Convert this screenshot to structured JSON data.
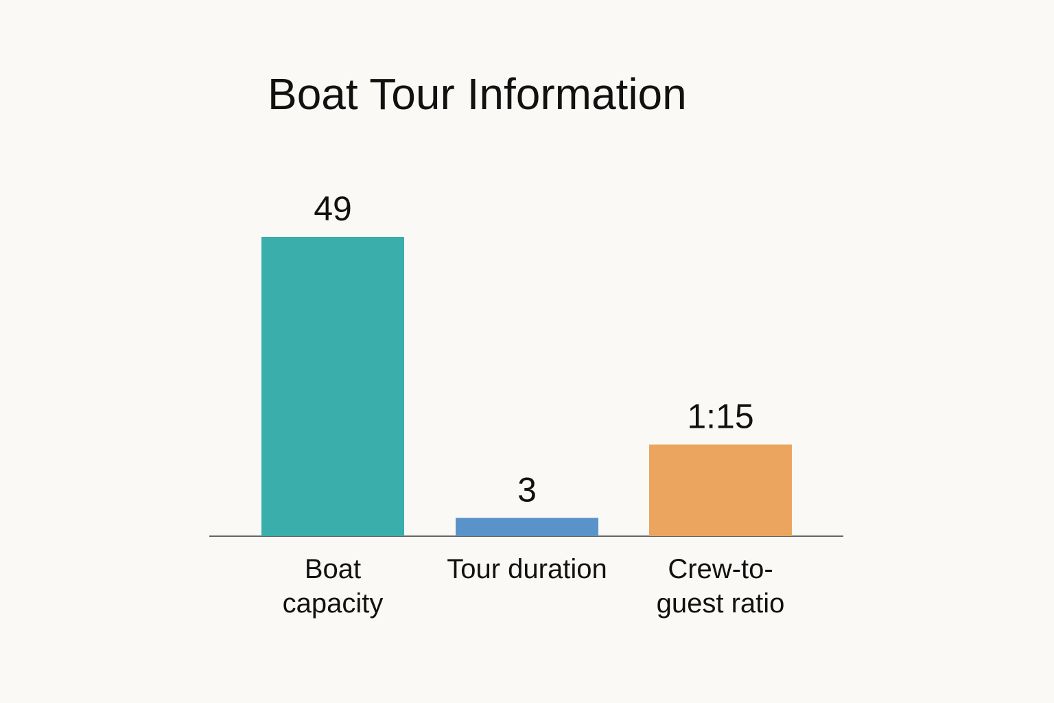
{
  "chart_data": {
    "type": "bar",
    "title": "Boat Tour Information",
    "categories": [
      "Boat capacity",
      "Tour duration",
      "Crew-to-guest ratio"
    ],
    "values": [
      49,
      3,
      15
    ],
    "value_labels": [
      "49",
      "3",
      "1:15"
    ],
    "colors": [
      "#3aaeaa",
      "#5a93c9",
      "#eca55e"
    ]
  }
}
